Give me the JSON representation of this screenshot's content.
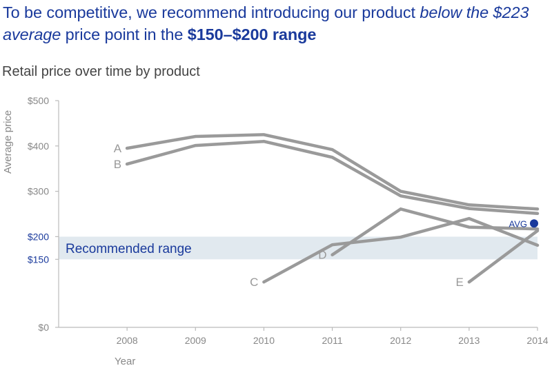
{
  "headline": {
    "part1": "To be competitive, we recommend introducing our product ",
    "part2_italic": "below the $223 average",
    "part3": " price point in the ",
    "part4_bold": "$150–$200 range"
  },
  "colors": {
    "accent": "#1a3a9c",
    "line": "#9a9a9a",
    "band": "#e1e9ef",
    "axis": "#bbbbbb",
    "muted_text": "#888888"
  },
  "chart_data": {
    "type": "line",
    "title": "Retail price over time by product",
    "xlabel": "Year",
    "ylabel": "Average price",
    "x": [
      2008,
      2009,
      2010,
      2011,
      2012,
      2013,
      2014
    ],
    "xlim": [
      2007,
      2014
    ],
    "ylim": [
      0,
      500
    ],
    "y_ticks": [
      {
        "value": 0,
        "label": "$0",
        "highlight": false
      },
      {
        "value": 150,
        "label": "$150",
        "highlight": true
      },
      {
        "value": 200,
        "label": "$200",
        "highlight": true
      },
      {
        "value": 300,
        "label": "$300",
        "highlight": false
      },
      {
        "value": 400,
        "label": "$400",
        "highlight": false
      },
      {
        "value": 500,
        "label": "$500",
        "highlight": false
      }
    ],
    "x_tick_labels": [
      "2008",
      "2009",
      "2010",
      "2011",
      "2012",
      "2013",
      "2014"
    ],
    "grid": false,
    "series": [
      {
        "name": "A",
        "x": [
          2008,
          2009,
          2010,
          2011,
          2012,
          2013,
          2014
        ],
        "values": [
          395,
          421,
          425,
          392,
          300,
          270,
          261
        ]
      },
      {
        "name": "B",
        "x": [
          2008,
          2009,
          2010,
          2011,
          2012,
          2013,
          2014
        ],
        "values": [
          360,
          401,
          410,
          375,
          290,
          262,
          251
        ]
      },
      {
        "name": "C",
        "x": [
          2010,
          2011,
          2012,
          2013,
          2014
        ],
        "values": [
          100,
          182,
          199,
          240,
          181
        ]
      },
      {
        "name": "D",
        "x": [
          2011,
          2012,
          2013,
          2014
        ],
        "values": [
          160,
          261,
          221,
          217
        ]
      },
      {
        "name": "E",
        "x": [
          2013,
          2014
        ],
        "values": [
          100,
          213
        ]
      }
    ],
    "recommended_range": {
      "label": "Recommended range",
      "low": 150,
      "high": 200
    },
    "average": {
      "label": "AVG",
      "value": 223
    }
  }
}
